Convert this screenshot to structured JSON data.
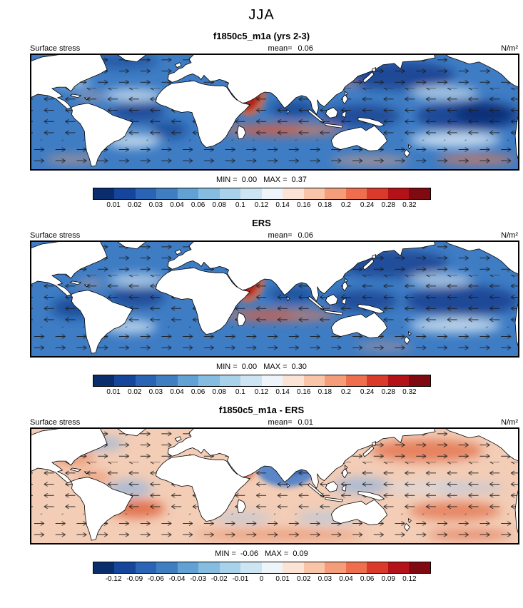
{
  "page_title": "JJA",
  "colorbar_colors": [
    "#0a2d6e",
    "#16459c",
    "#2b63b5",
    "#3f7fc1",
    "#62a1d4",
    "#85bce0",
    "#a8d1ea",
    "#cde4f2",
    "#eef5fa",
    "#fbe3d6",
    "#f9c5a9",
    "#f59d7a",
    "#ee6e4e",
    "#d93a2b",
    "#b31218",
    "#7f0a10"
  ],
  "panels": [
    {
      "title": "f1850c5_m1a (yrs 2-3)",
      "field_label": "Surface stress",
      "mean_label": "mean=",
      "mean_value": "0.06",
      "units": "N/m²",
      "min_label": "MIN =",
      "min_value": "0.00",
      "max_label": "MAX =",
      "max_value": "0.37",
      "ticks": [
        "0.01",
        "0.02",
        "0.03",
        "0.04",
        "0.06",
        "0.08",
        "0.1",
        "0.12",
        "0.14",
        "0.16",
        "0.18",
        "0.2",
        "0.24",
        "0.28",
        "0.32"
      ]
    },
    {
      "title": "ERS",
      "field_label": "Surface stress",
      "mean_label": "mean=",
      "mean_value": "0.06",
      "units": "N/m²",
      "min_label": "MIN =",
      "min_value": "0.00",
      "max_label": "MAX =",
      "max_value": "0.30",
      "ticks": [
        "0.01",
        "0.02",
        "0.03",
        "0.04",
        "0.06",
        "0.08",
        "0.1",
        "0.12",
        "0.14",
        "0.16",
        "0.18",
        "0.2",
        "0.24",
        "0.28",
        "0.32"
      ]
    },
    {
      "title": "f1850c5_m1a - ERS",
      "field_label": "Surface stress",
      "mean_label": "mean=",
      "mean_value": "0.01",
      "units": "N/m²",
      "min_label": "MIN =",
      "min_value": "-0.06",
      "max_label": "MAX =",
      "max_value": "0.09",
      "ticks": [
        "-0.12",
        "-0.09",
        "-0.06",
        "-0.04",
        "-0.03",
        "-0.02",
        "-0.01",
        "0",
        "0.01",
        "0.02",
        "0.03",
        "0.04",
        "0.06",
        "0.09",
        "0.12"
      ]
    }
  ],
  "chart_data": [
    {
      "type": "heatmap",
      "subtype": "global-map-filled-contour-with-vectors",
      "title": "f1850c5_m1a (yrs 2-3)",
      "season": "JJA",
      "variable": "Surface stress",
      "units": "N/m²",
      "mean": 0.06,
      "min": 0.0,
      "max": 0.37,
      "vector_overlay": true,
      "colormap": "blue-white-red diverging",
      "contour_levels": [
        0.01,
        0.02,
        0.03,
        0.04,
        0.06,
        0.08,
        0.1,
        0.12,
        0.14,
        0.16,
        0.18,
        0.2,
        0.24,
        0.28,
        0.32
      ],
      "legend_position": "bottom"
    },
    {
      "type": "heatmap",
      "subtype": "global-map-filled-contour-with-vectors",
      "title": "ERS",
      "season": "JJA",
      "variable": "Surface stress",
      "units": "N/m²",
      "mean": 0.06,
      "min": 0.0,
      "max": 0.3,
      "vector_overlay": true,
      "colormap": "blue-white-red diverging",
      "contour_levels": [
        0.01,
        0.02,
        0.03,
        0.04,
        0.06,
        0.08,
        0.1,
        0.12,
        0.14,
        0.16,
        0.18,
        0.2,
        0.24,
        0.28,
        0.32
      ],
      "legend_position": "bottom"
    },
    {
      "type": "heatmap",
      "subtype": "global-map-difference-with-vectors",
      "title": "f1850c5_m1a - ERS",
      "season": "JJA",
      "variable": "Surface stress difference",
      "units": "N/m²",
      "mean": 0.01,
      "min": -0.06,
      "max": 0.09,
      "vector_overlay": true,
      "colormap": "blue-white-red diverging",
      "contour_levels": [
        -0.12,
        -0.09,
        -0.06,
        -0.04,
        -0.03,
        -0.02,
        -0.01,
        0,
        0.01,
        0.02,
        0.03,
        0.04,
        0.06,
        0.09,
        0.12
      ],
      "legend_position": "bottom"
    }
  ]
}
